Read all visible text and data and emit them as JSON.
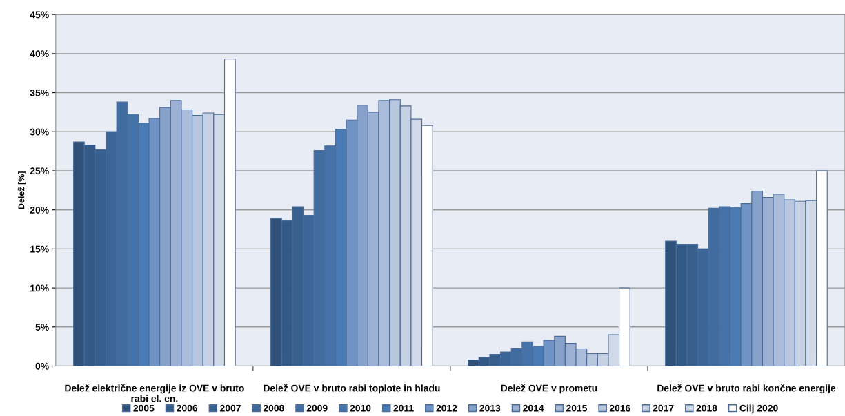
{
  "chart_data": {
    "type": "bar",
    "ylabel": "Delež [%]",
    "categories": [
      "Delež električne energije iz OVE v bruto rabi el. en.",
      "Delež OVE v bruto rabi toplote in hladu",
      "Delež OVE v prometu",
      "Delež OVE v bruto rabi končne energije"
    ],
    "series": [
      {
        "name": "2005",
        "color": "#2f5078",
        "values": [
          28.7,
          18.9,
          0.8,
          16.0
        ]
      },
      {
        "name": "2006",
        "color": "#335a86",
        "values": [
          28.3,
          18.6,
          1.1,
          15.6
        ]
      },
      {
        "name": "2007",
        "color": "#38608f",
        "values": [
          27.7,
          20.4,
          1.5,
          15.6
        ]
      },
      {
        "name": "2008",
        "color": "#3c6698",
        "values": [
          30.0,
          19.3,
          1.8,
          15.0
        ]
      },
      {
        "name": "2009",
        "color": "#406ca0",
        "values": [
          33.8,
          27.6,
          2.3,
          20.2
        ]
      },
      {
        "name": "2010",
        "color": "#4672aa",
        "values": [
          32.2,
          28.2,
          3.1,
          20.4
        ]
      },
      {
        "name": "2011",
        "color": "#4a7ab4",
        "values": [
          31.1,
          30.3,
          2.5,
          20.3
        ]
      },
      {
        "name": "2012",
        "color": "#6e93c4",
        "values": [
          31.7,
          31.5,
          3.3,
          20.8
        ]
      },
      {
        "name": "2013",
        "color": "#86a2cb",
        "values": [
          33.1,
          33.4,
          3.8,
          22.4
        ]
      },
      {
        "name": "2014",
        "color": "#9bb0d3",
        "values": [
          34.0,
          32.5,
          2.9,
          21.6
        ]
      },
      {
        "name": "2015",
        "color": "#abbcda",
        "values": [
          32.8,
          34.0,
          2.2,
          22.0
        ]
      },
      {
        "name": "2016",
        "color": "#b8c6de",
        "values": [
          32.1,
          34.1,
          1.6,
          21.3
        ]
      },
      {
        "name": "2017",
        "color": "#c6d1e3",
        "values": [
          32.4,
          33.3,
          1.6,
          21.1
        ]
      },
      {
        "name": "2018",
        "color": "#d0d9e8",
        "values": [
          32.2,
          31.6,
          4.0,
          21.2
        ]
      },
      {
        "name": "Cilj 2020",
        "color": "#ffffff",
        "values": [
          39.3,
          30.8,
          10.0,
          25.0
        ]
      }
    ],
    "ylim": [
      0,
      45
    ],
    "yticks": [
      {
        "value": 0,
        "label": "0%"
      },
      {
        "value": 5,
        "label": "5%"
      },
      {
        "value": 10,
        "label": "10%"
      },
      {
        "value": 15,
        "label": "15%"
      },
      {
        "value": 20,
        "label": "20%"
      },
      {
        "value": 25,
        "label": "25%"
      },
      {
        "value": 30,
        "label": "30%"
      },
      {
        "value": 35,
        "label": "35%"
      },
      {
        "value": 40,
        "label": "40%"
      },
      {
        "value": 45,
        "label": "45%"
      }
    ],
    "grid": "y",
    "legend": "bottom"
  }
}
